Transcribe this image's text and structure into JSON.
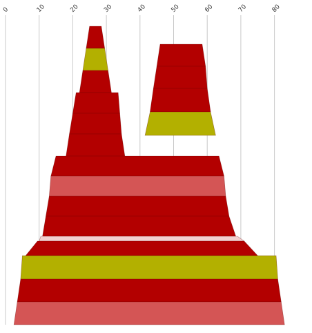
{
  "chart_data": {
    "type": "area",
    "x_axis": {
      "ticks": [
        0,
        10,
        20,
        30,
        40,
        50,
        60,
        70,
        80
      ],
      "tick_labels": [
        "0",
        "10",
        "20",
        "30",
        "40",
        "50",
        "60",
        "70",
        "80"
      ],
      "range": [
        0,
        85
      ],
      "tick_label_rotation": -45,
      "grid": true
    },
    "y_axis": {
      "visible": false
    },
    "legend": "none",
    "colors": {
      "dark_red": "#b30000",
      "olive": "#b3b000",
      "salmon": "#d45555",
      "pale_pink": "#f2d0d0",
      "grid": "#c8c8c8"
    },
    "bands": [
      {
        "top_left": 25.0,
        "top_right": 28.5,
        "bottom_left": 24.0,
        "bottom_right": 29.5,
        "color": "dark_red"
      },
      {
        "top_left": 24.0,
        "top_right": 29.5,
        "bottom_left": 23.0,
        "bottom_right": 30.5,
        "color": "olive"
      },
      {
        "top_left": 23.0,
        "top_right": 30.5,
        "bottom_left": 22.0,
        "bottom_right": 31.5,
        "color": "dark_red"
      },
      {
        "top_left": 21.0,
        "top_right": 33.5,
        "bottom_left": 20.0,
        "bottom_right": 34.0,
        "color": "dark_red"
      },
      {
        "top_left": 20.0,
        "top_right": 34.0,
        "bottom_left": 19.0,
        "bottom_right": 34.5,
        "color": "dark_red"
      },
      {
        "top_left": 19.0,
        "top_right": 34.5,
        "bottom_left": 18.0,
        "bottom_right": 35.5,
        "color": "dark_red"
      },
      {
        "top_left": 46.0,
        "top_right": 58.5,
        "bottom_left": 45.0,
        "bottom_right": 59.5,
        "color": "dark_red"
      },
      {
        "top_left": 45.0,
        "top_right": 59.5,
        "bottom_left": 44.0,
        "bottom_right": 60.0,
        "color": "dark_red"
      },
      {
        "top_left": 44.0,
        "top_right": 60.0,
        "bottom_left": 43.0,
        "bottom_right": 61.0,
        "color": "dark_red"
      },
      {
        "top_left": 43.0,
        "top_right": 61.0,
        "bottom_left": 41.5,
        "bottom_right": 62.5,
        "color": "olive"
      },
      {
        "top_left": 15.0,
        "top_right": 63.5,
        "bottom_left": 13.5,
        "bottom_right": 65.0,
        "color": "dark_red"
      },
      {
        "top_left": 13.5,
        "top_right": 65.0,
        "bottom_left": 13.0,
        "bottom_right": 65.5,
        "color": "salmon"
      },
      {
        "top_left": 13.0,
        "top_right": 65.5,
        "bottom_left": 12.0,
        "bottom_right": 66.5,
        "color": "dark_red"
      },
      {
        "top_left": 12.0,
        "top_right": 66.5,
        "bottom_left": 11.0,
        "bottom_right": 68.5,
        "color": "dark_red"
      },
      {
        "top_left": 10.5,
        "top_right": 69.0,
        "bottom_left": 10.0,
        "bottom_right": 71.0,
        "color": "pale_pink"
      },
      {
        "top_left": 9.5,
        "top_right": 71.0,
        "bottom_left": 6.0,
        "bottom_right": 75.0,
        "color": "dark_red"
      },
      {
        "top_left": 5.0,
        "top_right": 80.5,
        "bottom_left": 4.5,
        "bottom_right": 81.0,
        "color": "olive"
      },
      {
        "top_left": 4.5,
        "top_right": 81.0,
        "bottom_left": 3.5,
        "bottom_right": 82.0,
        "color": "dark_red"
      },
      {
        "top_left": 3.5,
        "top_right": 82.0,
        "bottom_left": 2.5,
        "bottom_right": 83.0,
        "color": "salmon"
      }
    ]
  }
}
